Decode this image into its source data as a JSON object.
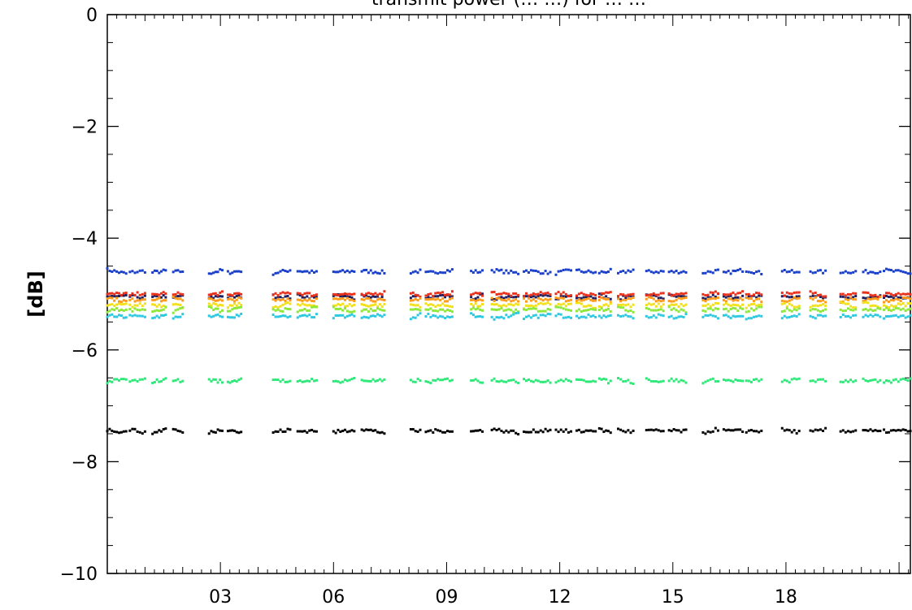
{
  "chart_data": {
    "type": "scatter",
    "title": "transmit power (… …) for … …",
    "xlabel": "",
    "ylabel": "[dB]",
    "ylim": [
      -10,
      0
    ],
    "xlim": [
      0,
      21.3
    ],
    "yticks": [
      0,
      -2,
      -4,
      -6,
      -8,
      -10
    ],
    "ytick_labels": [
      "0",
      "-2",
      "-4",
      "-6",
      "-8",
      "-10"
    ],
    "xticks": [
      3,
      6,
      9,
      12,
      15,
      18
    ],
    "xtick_labels": [
      "03",
      "06",
      "09",
      "12",
      "15",
      "18"
    ],
    "grid": false,
    "segments": [
      [
        0.0,
        0.5
      ],
      [
        0.6,
        1.0
      ],
      [
        1.2,
        1.55
      ],
      [
        1.75,
        2.0
      ],
      [
        2.7,
        3.05
      ],
      [
        3.2,
        3.55
      ],
      [
        4.4,
        4.85
      ],
      [
        5.05,
        5.55
      ],
      [
        6.0,
        6.55
      ],
      [
        6.75,
        7.35
      ],
      [
        8.05,
        8.3
      ],
      [
        8.45,
        9.15
      ],
      [
        9.65,
        9.95
      ],
      [
        10.2,
        10.9
      ],
      [
        11.05,
        11.75
      ],
      [
        11.9,
        12.3
      ],
      [
        12.45,
        12.95
      ],
      [
        13.05,
        13.35
      ],
      [
        13.55,
        13.95
      ],
      [
        14.3,
        14.75
      ],
      [
        14.9,
        15.35
      ],
      [
        15.8,
        16.2
      ],
      [
        16.35,
        16.85
      ],
      [
        16.95,
        17.35
      ],
      [
        17.9,
        18.35
      ],
      [
        18.65,
        19.05
      ],
      [
        19.45,
        19.85
      ],
      [
        20.05,
        20.5
      ],
      [
        20.6,
        21.3
      ]
    ],
    "series": [
      {
        "color": "#1a3fc8",
        "level": -4.6
      },
      {
        "color": "#202060",
        "level": -5.05
      },
      {
        "color": "#e8301a",
        "level": -5.0
      },
      {
        "color": "#ff9a1a",
        "level": -5.1
      },
      {
        "color": "#f2e01a",
        "level": -5.2
      },
      {
        "color": "#8ee83a",
        "level": -5.28
      },
      {
        "color": "#2ec8e0",
        "level": -5.4
      },
      {
        "color": "#2ee87a",
        "level": -6.55
      },
      {
        "color": "#000000",
        "level": -7.45
      }
    ]
  }
}
